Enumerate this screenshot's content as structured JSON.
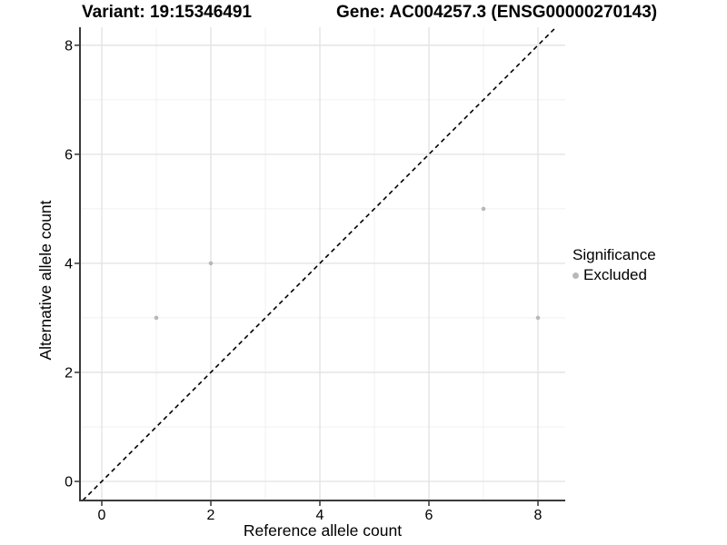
{
  "page": {
    "title_left": "Variant: 19:15346491",
    "title_right": "Gene: AC004257.3 (ENSG00000270143)"
  },
  "chart_data": {
    "type": "scatter",
    "title": "Variant: 19:15346491 | Gene: AC004257.3 (ENSG00000270143)",
    "xlabel": "Reference allele count",
    "ylabel": "Alternative allele count",
    "xlim": [
      -0.4,
      8.5
    ],
    "ylim": [
      -0.35,
      8.33
    ],
    "xticks": [
      0,
      2,
      4,
      6,
      8
    ],
    "yticks": [
      0,
      2,
      4,
      6,
      8
    ],
    "x_minor_gridlines": [
      1,
      3,
      5,
      7
    ],
    "y_minor_gridlines": [
      1,
      3,
      5,
      7
    ],
    "grid": "major-and-minor",
    "series": [
      {
        "name": "Excluded",
        "color": "#b8b8b8",
        "points": [
          [
            1,
            3
          ],
          [
            2,
            4
          ],
          [
            7,
            5
          ],
          [
            8,
            3
          ]
        ]
      }
    ],
    "reference_line": {
      "equation": "y = x",
      "style": "dashed",
      "color": "#000000"
    },
    "legend": {
      "title": "Significance",
      "position": "right",
      "items": [
        {
          "label": "Excluded",
          "color": "#b8b8b8"
        }
      ]
    }
  },
  "colors": {
    "background": "#ffffff",
    "axis_line": "#3a3a3a",
    "grid_major": "#e2e2e2",
    "grid_minor": "#f0f0f0",
    "tick": "#333333",
    "text": "#000000",
    "point": "#b8b8b8"
  }
}
